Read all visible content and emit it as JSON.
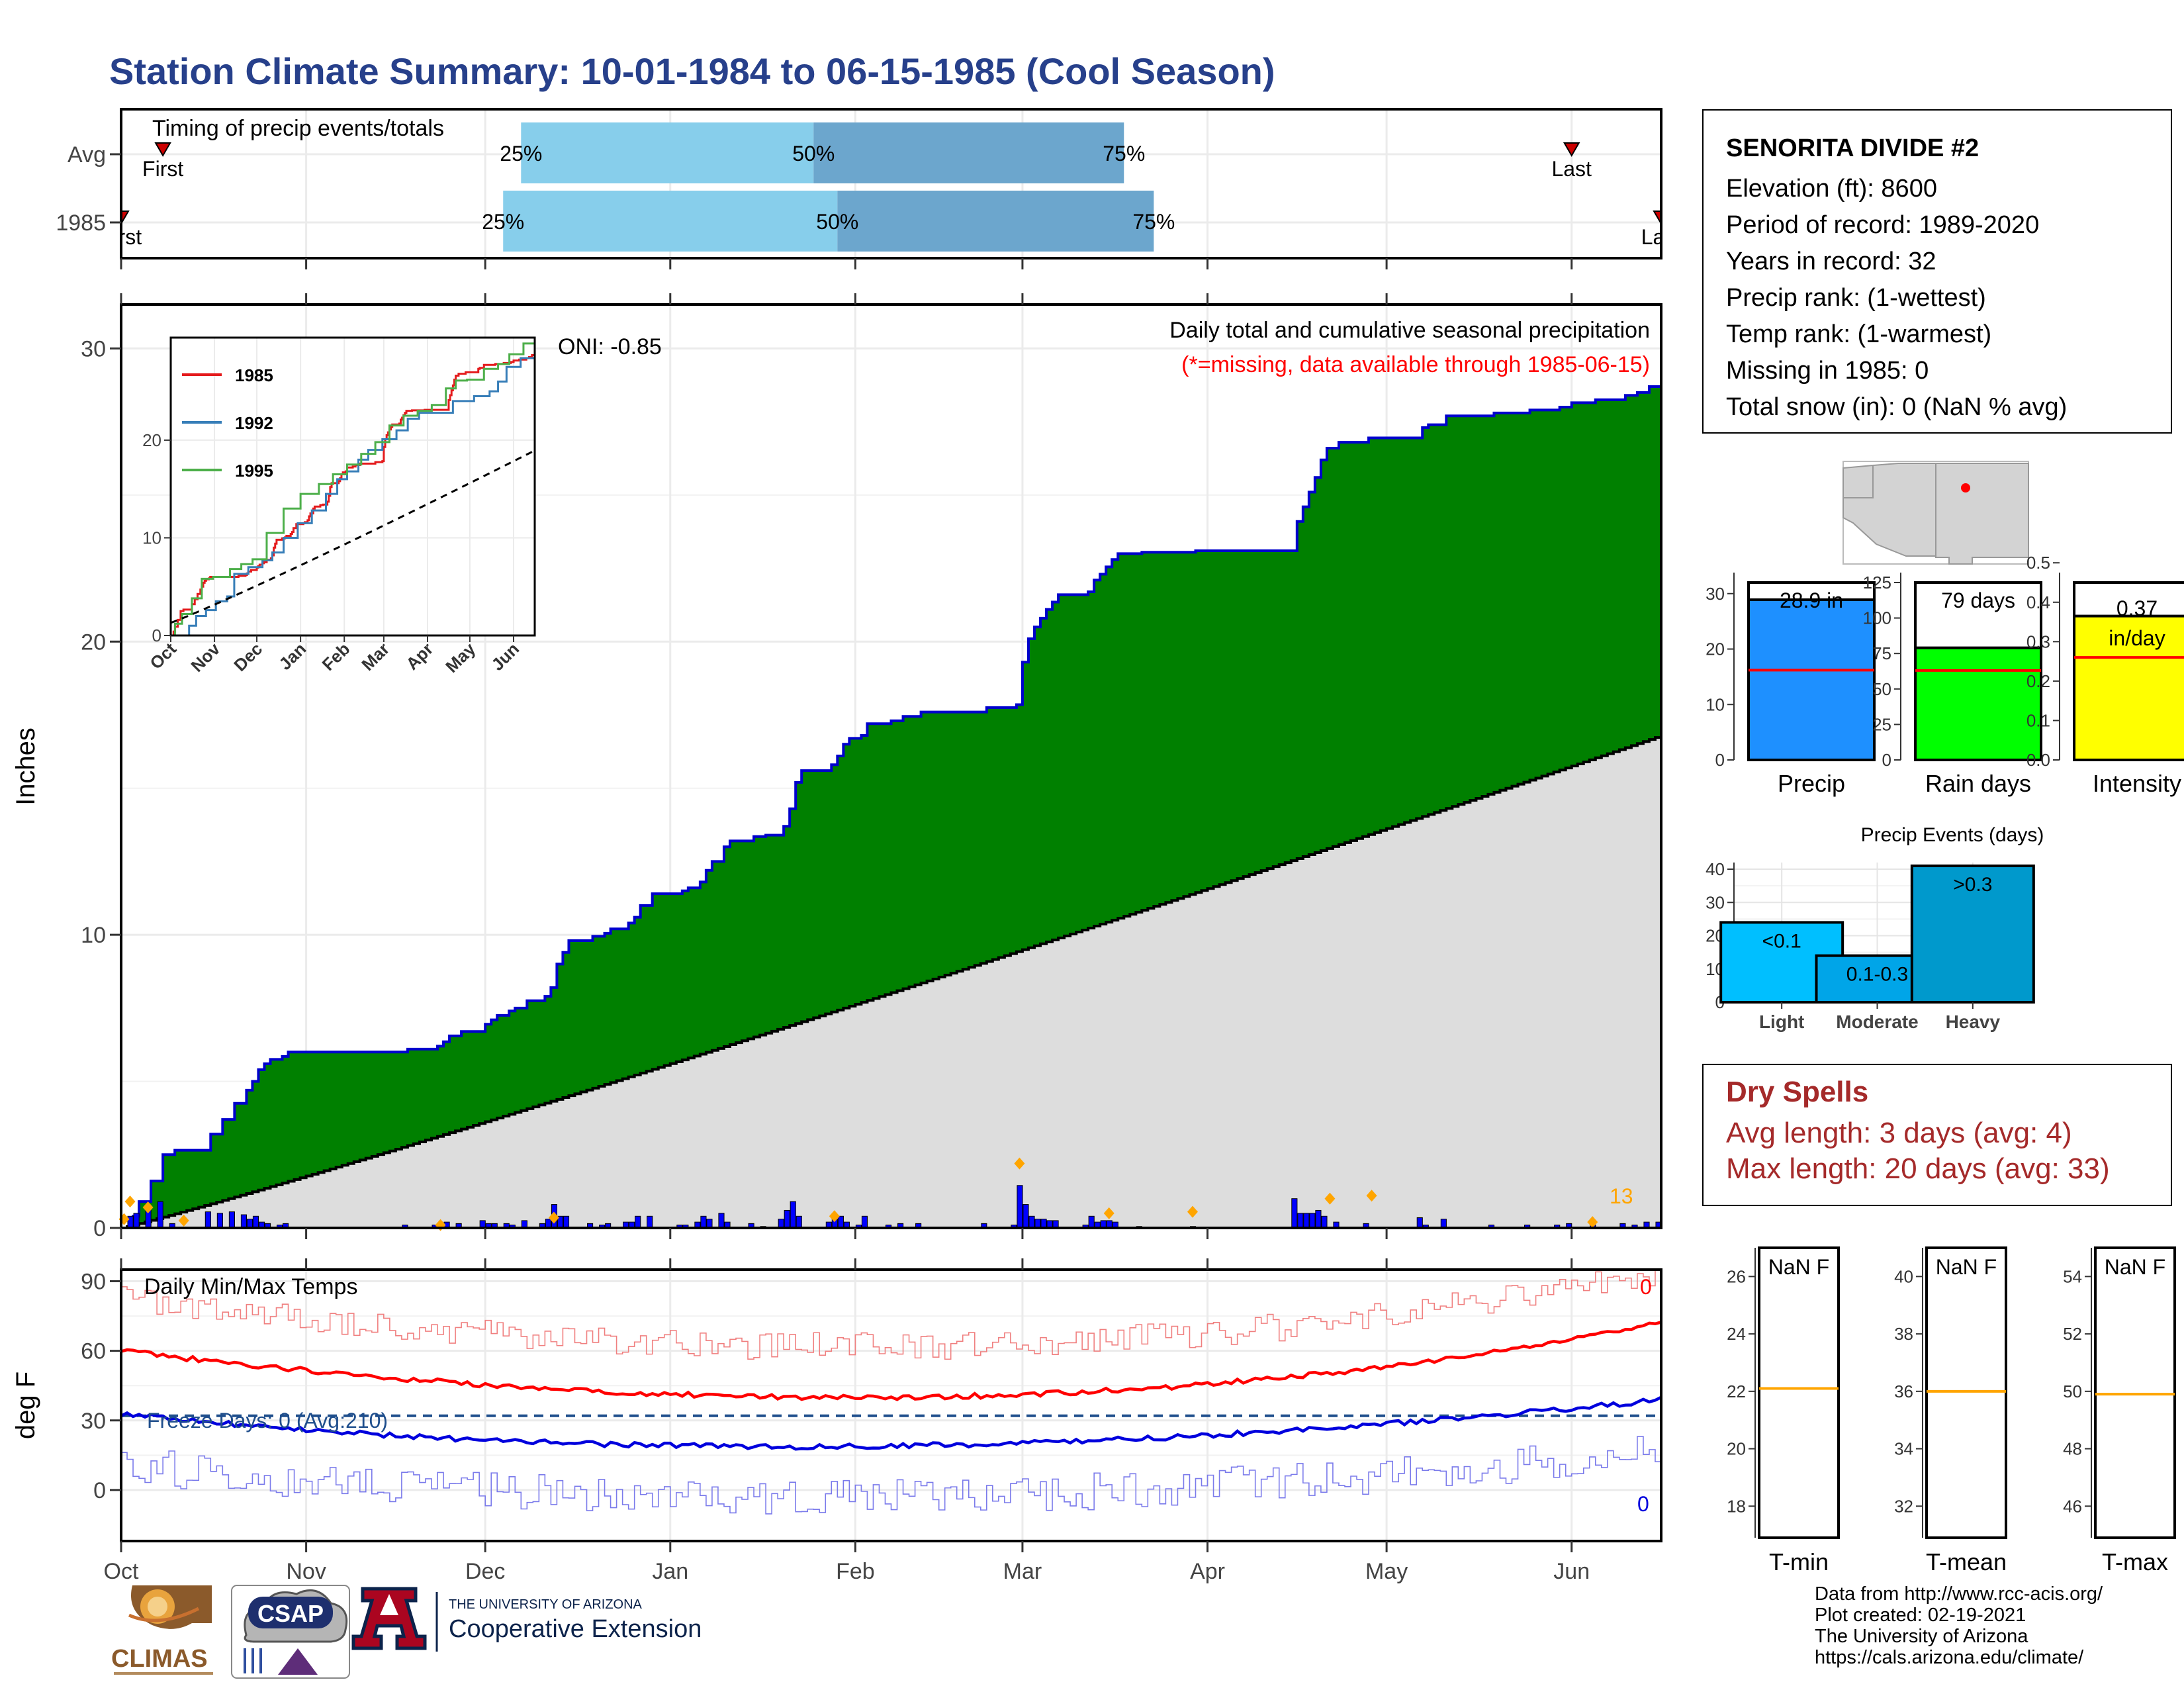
{
  "title": "Station Climate Summary: 10-01-1984 to 06-15-1985 (Cool Season)",
  "timing": {
    "label": "Timing of precip events/totals",
    "rows": [
      {
        "name": "Avg",
        "first_label": "First",
        "last_label": "Last",
        "p25": "25%",
        "p50": "50%",
        "p75": "75%"
      },
      {
        "name": "1985",
        "first_label": "First",
        "last_label": "Last",
        "p25": "25%",
        "p50": "50%",
        "p75": "75%"
      }
    ],
    "colors": {
      "light": "#87CEEB",
      "dark": "#6CA6CD",
      "marker": "#CC0000"
    }
  },
  "precip_panel": {
    "ylabel": "Inches",
    "title": "Daily total and cumulative seasonal precipitation",
    "missing_note": "(*=missing, data available through 1985-06-15)",
    "oni": "ONI: -0.85",
    "count_label": "13",
    "yticks": [
      0,
      10,
      20,
      30
    ],
    "ylim": [
      0,
      31.5
    ],
    "colors": {
      "cumulative_fill": "#008000",
      "cumulative_line": "#0000CD",
      "avg_fill": "#DDDDDD",
      "avg_line": "#000000",
      "daily_bar": "#0000FF",
      "event_marker": "#FFA500"
    }
  },
  "inset": {
    "yticks": [
      0,
      10,
      20
    ],
    "months": [
      "Oct",
      "Nov",
      "Dec",
      "Jan",
      "Feb",
      "Mar",
      "Apr",
      "May",
      "Jun"
    ],
    "legend": [
      {
        "name": "1985",
        "color": "#E41A1C"
      },
      {
        "name": "1992",
        "color": "#377EB8"
      },
      {
        "name": "1995",
        "color": "#4DAF4A"
      }
    ]
  },
  "temp_panel": {
    "ylabel": "deg F",
    "title": "Daily Min/Max Temps",
    "freeze_label": "Freeze Days: 0 (Avg:210)",
    "max_count": "0",
    "min_count": "0",
    "yticks": [
      0,
      30,
      60,
      90
    ],
    "ylim": [
      -22,
      95
    ],
    "freeze_line": 32,
    "colors": {
      "max_daily": "#F08080",
      "max_avg": "#FF0000",
      "min_daily": "#7B7BEB",
      "min_avg": "#0000DD",
      "freeze": "#1F4E8C"
    }
  },
  "x_months": [
    "Oct",
    "Nov",
    "Dec",
    "Jan",
    "Feb",
    "Mar",
    "Apr",
    "May",
    "Jun"
  ],
  "station": {
    "name": "SENORITA DIVIDE #2",
    "lines": [
      "Elevation (ft): 8600",
      "Period of record: 1989-2020",
      "Years in record: 32",
      "Precip rank:  (1-wettest)",
      "Temp rank:  (1-warmest)",
      "Missing in 1985: 0",
      "Total snow (in): 0 (NaN % avg)"
    ]
  },
  "mini_bars": [
    {
      "label": "Precip",
      "value_text": "28.9 in",
      "value": 28.9,
      "avg": 16.2,
      "ymax": 32,
      "yticks": [
        0,
        10,
        20,
        30
      ],
      "color": "#1E90FF"
    },
    {
      "label": "Rain days",
      "value_text": "79 days",
      "value": 79,
      "avg": 63,
      "ymax": 125,
      "yticks": [
        0,
        25,
        50,
        75,
        100,
        125
      ],
      "color": "#00FF00"
    },
    {
      "label": "Intensity",
      "value_text": "0.37",
      "unit_text": "in/day",
      "value": 0.365,
      "avg": 0.26,
      "ymax": 0.45,
      "yticks": [
        0.0,
        0.1,
        0.2,
        0.3,
        0.4,
        0.5
      ],
      "color": "#FFFF00"
    }
  ],
  "precip_events": {
    "title": "Precip Events (days)",
    "yticks": [
      0,
      10,
      20,
      30,
      40
    ],
    "ymax": 42,
    "bars": [
      {
        "name": "Light",
        "label": "<0.1",
        "value": 24,
        "color": "#00BFFF"
      },
      {
        "name": "Moderate",
        "label": "0.1-0.3",
        "value": 14,
        "color": "#00A5E8"
      },
      {
        "name": "Heavy",
        "label": ">0.3",
        "value": 41,
        "color": "#0099CC"
      }
    ]
  },
  "dry_spells": {
    "title": "Dry Spells",
    "avg": "Avg length: 3 days (avg: 4)",
    "max": "Max length: 20 days (avg: 33)"
  },
  "temp_boxes": [
    {
      "label": "T-min",
      "value": "NaN F",
      "yticks": [
        18,
        20,
        22,
        24,
        26
      ],
      "ylim": [
        16.9,
        27
      ],
      "avg": 22.1
    },
    {
      "label": "T-mean",
      "value": "NaN F",
      "yticks": [
        32,
        34,
        36,
        38,
        40
      ],
      "ylim": [
        30.9,
        41
      ],
      "avg": 36.0
    },
    {
      "label": "T-max",
      "value": "NaN F",
      "yticks": [
        46,
        48,
        50,
        52,
        54
      ],
      "ylim": [
        44.9,
        55
      ],
      "avg": 49.9
    }
  ],
  "logos": {
    "climas": "CLIMAS",
    "csap": "CSAP",
    "ua_line1": "THE UNIVERSITY OF ARIZONA",
    "ua_line2": "Cooperative Extension"
  },
  "footer": [
    "Data from http://www.rcc-acis.org/",
    "Plot created: 02-19-2021",
    "The University of Arizona",
    "https://cals.arizona.edu/climate/"
  ]
}
